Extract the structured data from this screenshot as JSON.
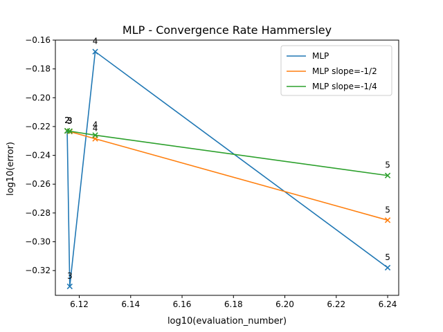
{
  "chart_data": {
    "type": "line",
    "title": "MLP - Convergence Rate Hammersley",
    "xlabel": "log10(evaluation_number)",
    "ylabel": "log10(error)",
    "xlim": [
      6.1107,
      6.2443
    ],
    "ylim": [
      -0.3372,
      -0.16
    ],
    "xticks": [
      6.12,
      6.14,
      6.16,
      6.18,
      6.2,
      6.22,
      6.24
    ],
    "xtick_labels": [
      "6.12",
      "6.14",
      "6.16",
      "6.18",
      "6.20",
      "6.22",
      "6.24"
    ],
    "yticks": [
      -0.32,
      -0.3,
      -0.28,
      -0.26,
      -0.24,
      -0.22,
      -0.2,
      -0.18,
      -0.16
    ],
    "ytick_labels": [
      "−0.32",
      "−0.30",
      "−0.28",
      "−0.26",
      "−0.24",
      "−0.22",
      "−0.20",
      "−0.18",
      "−0.16"
    ],
    "grid": false,
    "legend_position": "top-right",
    "marker": "x",
    "series": [
      {
        "name": "MLP",
        "color": "#1f77b4",
        "x": [
          6.1153,
          6.1163,
          6.1262,
          6.24
        ],
        "y": [
          -0.223,
          -0.331,
          -0.168,
          -0.318
        ],
        "point_labels": [
          "2",
          "3",
          "4",
          "5"
        ]
      },
      {
        "name": "MLP slope=-1/2",
        "color": "#ff7f0e",
        "x": [
          6.1153,
          6.1163,
          6.1262,
          6.24
        ],
        "y": [
          -0.223,
          -0.2235,
          -0.2285,
          -0.285
        ],
        "point_labels": [
          "2",
          "3",
          "4",
          "5"
        ]
      },
      {
        "name": "MLP slope=-1/4",
        "color": "#2ca02c",
        "x": [
          6.1153,
          6.1163,
          6.1262,
          6.24
        ],
        "y": [
          -0.223,
          -0.2232,
          -0.226,
          -0.254
        ],
        "point_labels": [
          "2",
          "3",
          "4",
          "5"
        ]
      }
    ]
  }
}
